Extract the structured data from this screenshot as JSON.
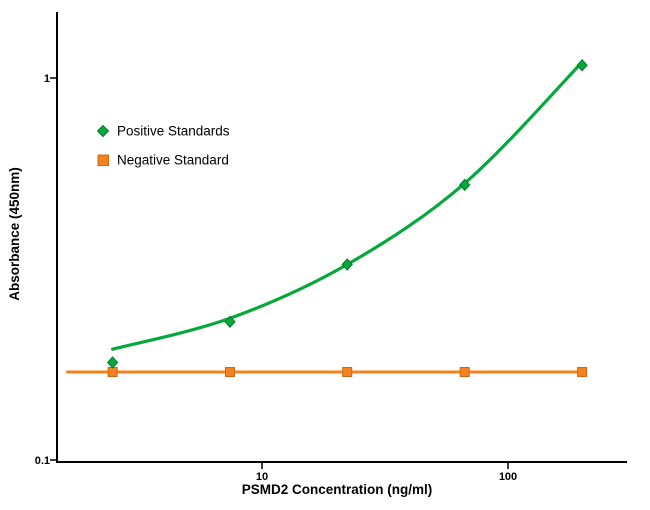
{
  "chart_data": {
    "type": "line",
    "title": "",
    "xlabel": "PSMD2 Concentration (ng/ml)",
    "ylabel": "Absorbance (450nm)",
    "x_scale": "log",
    "y_scale": "log",
    "x_range": [
      1.55,
      260
    ],
    "y_range": [
      0.1,
      1.5
    ],
    "grid": "off",
    "legend_position": "inside-top-left",
    "x_ticks": [
      {
        "value": 10,
        "label": "10"
      },
      {
        "value": 100,
        "label": "100"
      }
    ],
    "y_ticks": [
      {
        "value": 1,
        "label": "1"
      },
      {
        "value": 0.1,
        "label": "0.1"
      }
    ],
    "series": [
      {
        "name": "Positive Standards",
        "color": "#07a83b",
        "marker": "diamond",
        "x": [
          2.47,
          7.41,
          22.2,
          66.7,
          200
        ],
        "y": [
          0.18,
          0.23,
          0.325,
          0.525,
          1.08
        ],
        "fit_curve_y": [
          0.195,
          0.235,
          0.325,
          0.53,
          1.1
        ]
      },
      {
        "name": "Negative Standard",
        "color": "#f6821f",
        "marker": "square",
        "x": [
          2.47,
          7.41,
          22.2,
          66.7,
          200
        ],
        "y": [
          0.17,
          0.17,
          0.17,
          0.17,
          0.17
        ],
        "line_extent_x": [
          1.6,
          204
        ]
      }
    ]
  }
}
